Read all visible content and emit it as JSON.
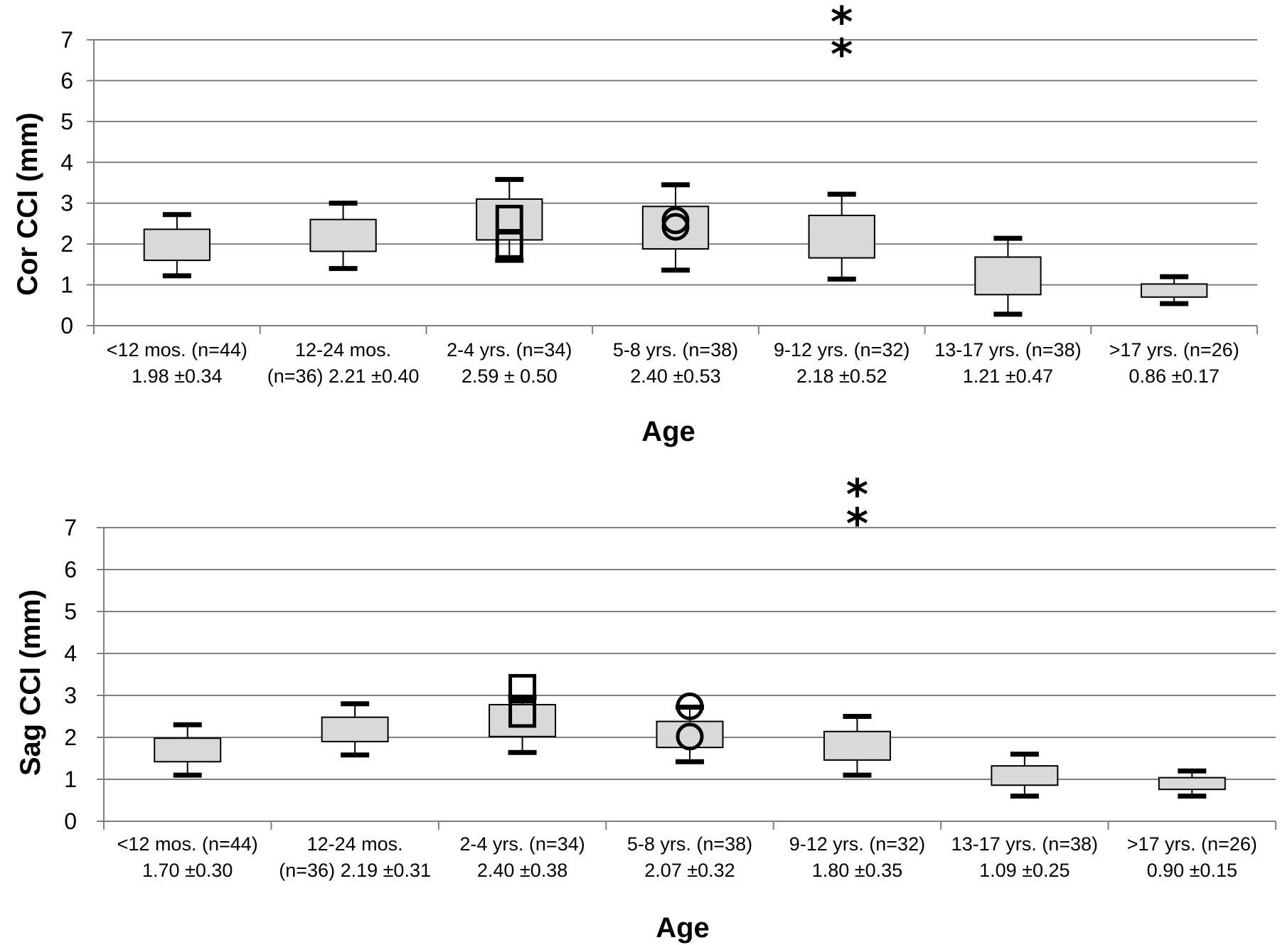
{
  "chart_data": [
    {
      "type": "box",
      "ylabel": "Cor CCI (mm)",
      "xlabel": "Age",
      "ylim": [
        0,
        7
      ],
      "yticks": [
        "0",
        "1",
        "2",
        "3",
        "4",
        "5",
        "6",
        "7"
      ],
      "grid": true,
      "categories": [
        {
          "line1": "<12 mos. (n=44)",
          "line2": "1.98 ±0.34",
          "min": 1.22,
          "q1": 1.6,
          "q3": 2.36,
          "max": 2.72,
          "outliers": []
        },
        {
          "line1": "12-24 mos.",
          "line2": "(n=36) 2.21 ±0.40",
          "min": 1.4,
          "q1": 1.82,
          "q3": 2.6,
          "max": 3.0,
          "outliers": []
        },
        {
          "line1": "2-4 yrs. (n=34)",
          "line2": "2.59 ± 0.50",
          "min": 1.6,
          "q1": 2.1,
          "q3": 3.1,
          "max": 3.58,
          "outliers": [
            {
              "symbol": "square",
              "y": 2.62
            },
            {
              "symbol": "square",
              "y": 1.98
            }
          ]
        },
        {
          "line1": "5-8 yrs. (n=38)",
          "line2": "2.40 ±0.53",
          "min": 1.36,
          "q1": 1.88,
          "q3": 2.92,
          "max": 3.45,
          "outliers": [
            {
              "symbol": "circle",
              "y": 2.58
            },
            {
              "symbol": "circle",
              "y": 2.42
            }
          ]
        },
        {
          "line1": "9-12 yrs. (n=32)",
          "line2": "2.18 ±0.52",
          "min": 1.14,
          "q1": 1.66,
          "q3": 2.7,
          "max": 3.22,
          "outliers": [
            {
              "symbol": "asterisk",
              "y": 7.5
            },
            {
              "symbol": "asterisk",
              "y": 6.7
            }
          ]
        },
        {
          "line1": "13-17 yrs. (n=38)",
          "line2": "1.21 ±0.47",
          "min": 0.28,
          "q1": 0.76,
          "q3": 1.68,
          "max": 2.14,
          "outliers": []
        },
        {
          "line1": ">17 yrs. (n=26)",
          "line2": "0.86 ±0.17",
          "min": 0.54,
          "q1": 0.7,
          "q3": 1.02,
          "max": 1.2,
          "outliers": []
        }
      ]
    },
    {
      "type": "box",
      "ylabel": "Sag CCI (mm)",
      "xlabel": "Age",
      "ylim": [
        0,
        7
      ],
      "yticks": [
        "0",
        "1",
        "2",
        "3",
        "4",
        "5",
        "6",
        "7"
      ],
      "grid": true,
      "categories": [
        {
          "line1": "<12 mos. (n=44)",
          "line2": "1.70 ±0.30",
          "min": 1.1,
          "q1": 1.42,
          "q3": 1.98,
          "max": 2.3,
          "outliers": []
        },
        {
          "line1": "12-24 mos.",
          "line2": "(n=36) 2.19 ±0.31",
          "min": 1.58,
          "q1": 1.9,
          "q3": 2.48,
          "max": 2.8,
          "outliers": []
        },
        {
          "line1": "2-4 yrs. (n=34)",
          "line2": "2.40 ±0.38",
          "min": 1.64,
          "q1": 2.02,
          "q3": 2.78,
          "max": 2.96,
          "outliers": [
            {
              "symbol": "square",
              "y": 3.18
            },
            {
              "symbol": "square",
              "y": 2.56
            }
          ]
        },
        {
          "line1": "5-8 yrs. (n=38)",
          "line2": "2.07 ±0.32",
          "min": 1.42,
          "q1": 1.76,
          "q3": 2.38,
          "max": 2.72,
          "outliers": [
            {
              "symbol": "circle",
              "y": 2.74
            },
            {
              "symbol": "circle",
              "y": 2.02
            }
          ]
        },
        {
          "line1": "9-12 yrs. (n=32)",
          "line2": "1.80 ±0.35",
          "min": 1.1,
          "q1": 1.46,
          "q3": 2.14,
          "max": 2.5,
          "outliers": [
            {
              "symbol": "asterisk",
              "y": 7.85
            },
            {
              "symbol": "asterisk",
              "y": 7.15
            }
          ]
        },
        {
          "line1": "13-17 yrs. (n=38)",
          "line2": "1.09 ±0.25",
          "min": 0.6,
          "q1": 0.86,
          "q3": 1.32,
          "max": 1.6,
          "outliers": []
        },
        {
          "line1": ">17 yrs. (n=26)",
          "line2": "0.90 ±0.15",
          "min": 0.6,
          "q1": 0.76,
          "q3": 1.04,
          "max": 1.2,
          "outliers": []
        }
      ]
    }
  ],
  "style": {
    "box_fill": "#d9d9d9",
    "box_stroke": "#000000",
    "grid_color": "#808080",
    "axis_color": "#808080"
  }
}
